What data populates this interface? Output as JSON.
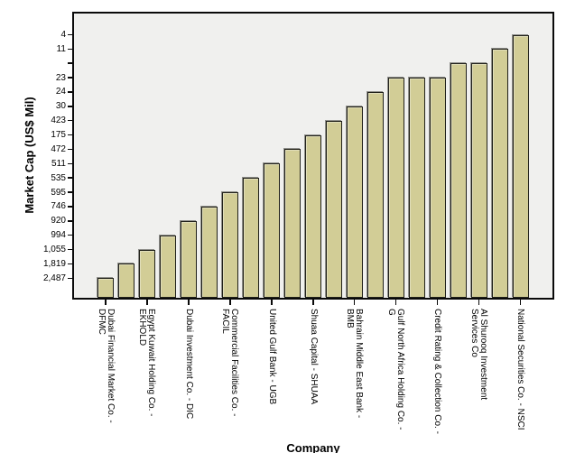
{
  "chart": {
    "y_axis_label": "Market Cap (US$ Mil)",
    "x_axis_label": "Company"
  },
  "colors": {
    "page_background": "#ffffff",
    "plot_background": "#f0f0ee",
    "frame_border": "#0a0a0a",
    "bar_fill": "#d2cd96",
    "bar_border": "#21211a",
    "bar_shadow": "#8f8f8b",
    "text": "#000000"
  },
  "chart_data": {
    "type": "bar",
    "title": "",
    "xlabel": "Company",
    "ylabel": "Market Cap (US$ Mil)",
    "y_axis_type": "categorical",
    "legend": "none",
    "grid": false,
    "y_categories_top_to_bottom": [
      "4",
      "11",
      "",
      "23",
      "24",
      "30",
      "423",
      "175",
      "472",
      "511",
      "535",
      "595",
      "746",
      "920",
      "994",
      "1,055",
      "1,819",
      "2,487"
    ],
    "bars": [
      {
        "name": "Dubai Financial Market Co. - DFMC",
        "label_lines": [
          "Dubai Financial Market Co. -",
          "DFMC"
        ],
        "value": 2487,
        "value_display": "2,487",
        "tick_index": 17
      },
      {
        "name": null,
        "label_lines": null,
        "value": 1819,
        "value_display": "1,819",
        "tick_index": 16
      },
      {
        "name": "Egypt Kuwait Holding Co. - EKHOLD",
        "label_lines": [
          "Egypt Kuwait Holding Co. -",
          "EKHOLD"
        ],
        "value": 1055,
        "value_display": "1,055",
        "tick_index": 15
      },
      {
        "name": null,
        "label_lines": null,
        "value": 994,
        "value_display": "994",
        "tick_index": 14
      },
      {
        "name": "Dubai Investment Co. - DIC",
        "label_lines": [
          "Dubai Investment Co. - DIC"
        ],
        "value": 920,
        "value_display": "920",
        "tick_index": 13
      },
      {
        "name": null,
        "label_lines": null,
        "value": 746,
        "value_display": "746",
        "tick_index": 12
      },
      {
        "name": "Commercial Facilities Co. - FACIL",
        "label_lines": [
          "Commercial Facilities Co. -",
          "FACIL"
        ],
        "value": 595,
        "value_display": "595",
        "tick_index": 11
      },
      {
        "name": null,
        "label_lines": null,
        "value": 535,
        "value_display": "535",
        "tick_index": 10
      },
      {
        "name": "United Gulf Bank - UGB",
        "label_lines": [
          "United Gulf Bank - UGB"
        ],
        "value": 511,
        "value_display": "511",
        "tick_index": 9
      },
      {
        "name": null,
        "label_lines": null,
        "value": 472,
        "value_display": "472",
        "tick_index": 8
      },
      {
        "name": "Shuaa Capital - SHUAA",
        "label_lines": [
          "Shuaa Capital - SHUAA"
        ],
        "value": 175,
        "value_display": "175",
        "tick_index": 7
      },
      {
        "name": null,
        "label_lines": null,
        "value": 423,
        "value_display": "423",
        "tick_index": 6
      },
      {
        "name": "Bahrain Middle East Bank - BMB",
        "label_lines": [
          "Bahrain Middle East Bank -",
          "BMB"
        ],
        "value": 30,
        "value_display": "30",
        "tick_index": 5
      },
      {
        "name": null,
        "label_lines": null,
        "value": 24,
        "value_display": "24",
        "tick_index": 4
      },
      {
        "name": "Gulf North Africa Holding Co. - G",
        "label_lines": [
          "Gulf North Africa Holding Co. -",
          "G"
        ],
        "value": 23,
        "value_display": "23",
        "tick_index": 3
      },
      {
        "name": null,
        "label_lines": null,
        "value": 23,
        "value_display": "23",
        "tick_index": 3
      },
      {
        "name": "Credit Rating & Collection Co. -",
        "label_lines": [
          "Credit Rating & Collection Co. -"
        ],
        "value": 23,
        "value_display": "23",
        "tick_index": 3
      },
      {
        "name": null,
        "label_lines": null,
        "value": null,
        "value_display": "",
        "tick_index": 2
      },
      {
        "name": "Al Shurooq Investment Services Co",
        "label_lines": [
          "Al Shurooq Investment",
          "Services Co"
        ],
        "value": null,
        "value_display": "",
        "tick_index": 2
      },
      {
        "name": null,
        "label_lines": null,
        "value": 11,
        "value_display": "11",
        "tick_index": 1
      },
      {
        "name": "National Securities Co. - NSCI",
        "label_lines": [
          "National Securities Co. - NSCI"
        ],
        "value": 4,
        "value_display": "4",
        "tick_index": 0
      }
    ]
  }
}
